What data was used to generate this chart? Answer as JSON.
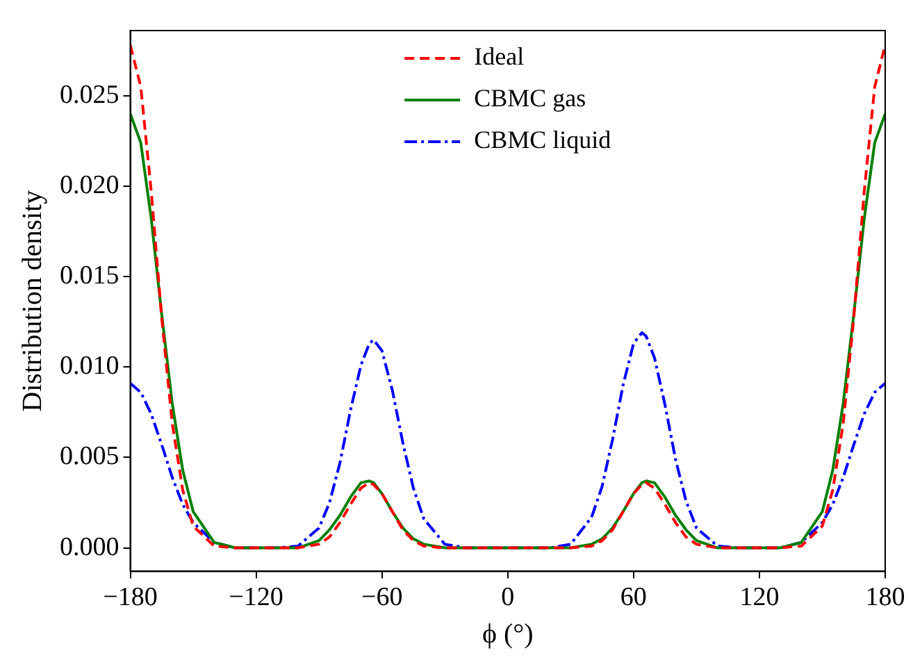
{
  "chart_data": {
    "type": "line",
    "xlabel": "ϕ (°)",
    "ylabel": "Distribution density",
    "x": [
      -180,
      -175,
      -170,
      -165,
      -160,
      -155,
      -150,
      -140,
      -130,
      -120,
      -110,
      -100,
      -90,
      -85,
      -80,
      -75,
      -70,
      -66,
      -64,
      -60,
      -55,
      -50,
      -45,
      -40,
      -30,
      -20,
      -10,
      0,
      10,
      20,
      30,
      40,
      45,
      50,
      55,
      60,
      64,
      66,
      70,
      75,
      80,
      85,
      90,
      100,
      110,
      120,
      130,
      140,
      150,
      155,
      160,
      165,
      170,
      175,
      180
    ],
    "series": [
      {
        "name": "Ideal",
        "color": "#ff0000",
        "line_style": "dashed",
        "values": [
          0.0278,
          0.0255,
          0.0197,
          0.0127,
          0.0069,
          0.0032,
          0.0012,
          0.0001,
          0,
          0,
          0,
          0,
          0.0002,
          0.0006,
          0.0014,
          0.0024,
          0.0033,
          0.0036,
          0.0035,
          0.003,
          0.002,
          0.001,
          0.0004,
          0.0001,
          0,
          0,
          0,
          0,
          0,
          0,
          0,
          0.0001,
          0.0004,
          0.001,
          0.002,
          0.003,
          0.0035,
          0.0036,
          0.0033,
          0.0024,
          0.0014,
          0.0006,
          0.0002,
          0,
          0,
          0,
          0,
          0.0001,
          0.0012,
          0.0032,
          0.0069,
          0.0127,
          0.0197,
          0.0255,
          0.0278
        ]
      },
      {
        "name": "CBMC gas",
        "color": "#008000",
        "line_style": "solid",
        "values": [
          0.024,
          0.0224,
          0.0182,
          0.0129,
          0.008,
          0.0043,
          0.002,
          0.0003,
          0,
          0,
          0,
          0,
          0.0004,
          0.001,
          0.0018,
          0.0028,
          0.0036,
          0.0037,
          0.0036,
          0.003,
          0.002,
          0.0011,
          0.0005,
          0.0002,
          0,
          0,
          0,
          0,
          0,
          0,
          0,
          0.0002,
          0.0005,
          0.0011,
          0.002,
          0.003,
          0.0036,
          0.0037,
          0.0036,
          0.0028,
          0.0018,
          0.001,
          0.0004,
          0,
          0,
          0,
          0,
          0.0003,
          0.002,
          0.0043,
          0.008,
          0.0129,
          0.0182,
          0.0224,
          0.024
        ]
      },
      {
        "name": "CBMC liquid",
        "color": "#0000ff",
        "line_style": "dashdot",
        "values": [
          0.0091,
          0.0086,
          0.0074,
          0.0057,
          0.0039,
          0.0024,
          0.0014,
          0.0003,
          0,
          0,
          0,
          0.0001,
          0.0011,
          0.0025,
          0.0047,
          0.0076,
          0.0101,
          0.0113,
          0.0115,
          0.0109,
          0.0087,
          0.0058,
          0.0033,
          0.0016,
          0.0002,
          0,
          0,
          0,
          0,
          0,
          0.0002,
          0.0017,
          0.0034,
          0.006,
          0.009,
          0.0113,
          0.0119,
          0.0117,
          0.0105,
          0.0079,
          0.0049,
          0.0026,
          0.0011,
          0.0001,
          0,
          0,
          0,
          0.0003,
          0.0014,
          0.0024,
          0.0039,
          0.0057,
          0.0074,
          0.0086,
          0.0091
        ]
      }
    ],
    "xlim": [
      -180,
      180
    ],
    "xticks": [
      {
        "value": -180,
        "label": "−180"
      },
      {
        "value": -120,
        "label": "−120"
      },
      {
        "value": -60,
        "label": "−60"
      },
      0,
      60,
      120,
      180
    ],
    "ylim": [
      -0.0013,
      0.0286
    ],
    "yticks": [
      {
        "value": 0,
        "label": "0.000"
      },
      {
        "value": 0.005,
        "label": "0.005"
      },
      {
        "value": 0.01,
        "label": "0.010"
      },
      {
        "value": 0.015,
        "label": "0.015"
      },
      {
        "value": 0.02,
        "label": "0.020"
      },
      {
        "value": 0.025,
        "label": "0.025"
      }
    ],
    "legend": "top",
    "grid": false
  }
}
